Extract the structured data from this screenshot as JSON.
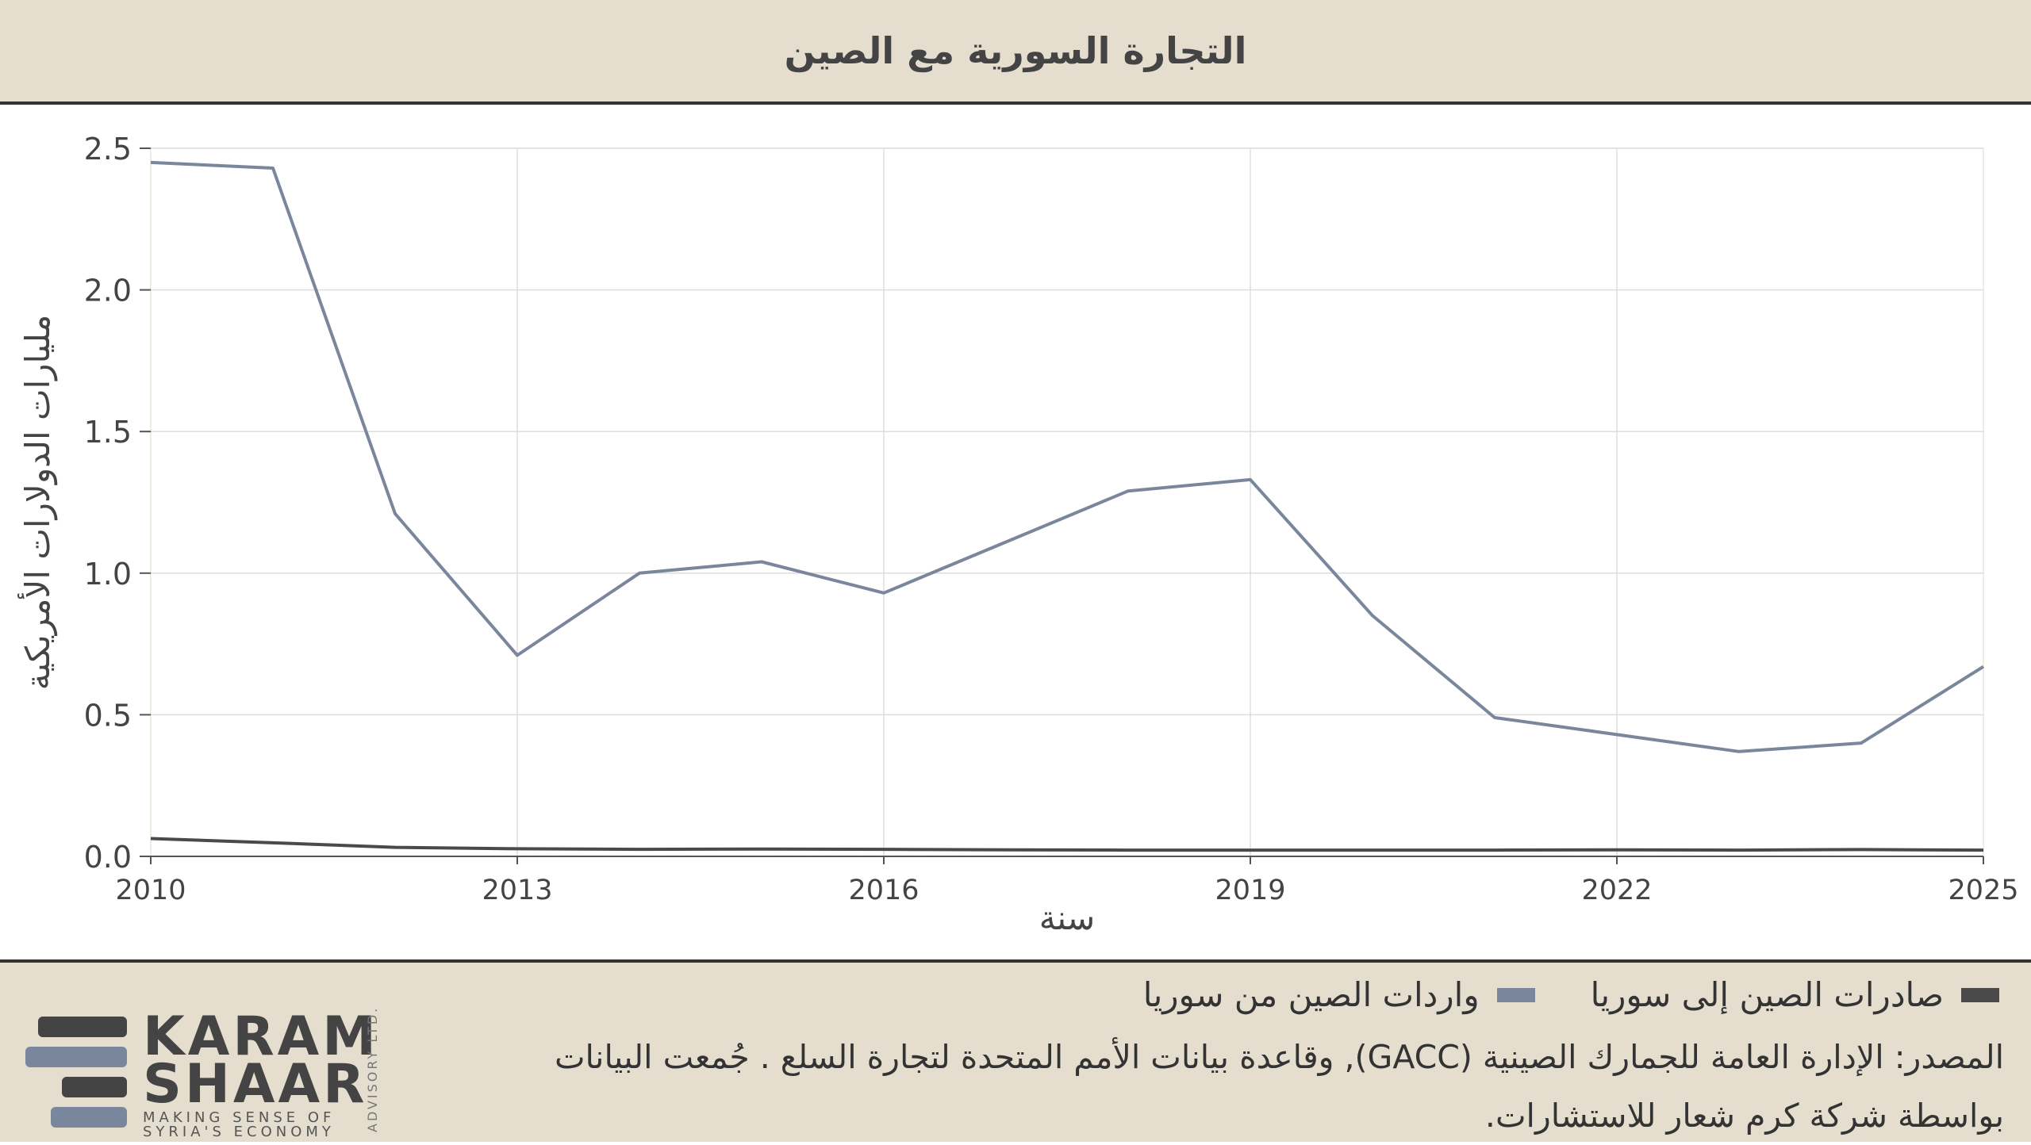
{
  "header": {
    "title": "التجارة السورية مع الصين"
  },
  "chart_data": {
    "type": "line",
    "title": "التجارة السورية مع الصين",
    "xlabel": "سنة",
    "ylabel": "مليارات الدولارات الأمريكية",
    "xlim": [
      2010,
      2025
    ],
    "ylim": [
      0,
      2.5
    ],
    "x_ticks": [
      "2010",
      "2013",
      "2016",
      "2019",
      "2022",
      "2025"
    ],
    "y_ticks": [
      "0.0",
      "0.5",
      "1.0",
      "1.5",
      "2.0",
      "2.5"
    ],
    "grid": true,
    "x": [
      2010,
      2011,
      2012,
      2013,
      2014,
      2015,
      2016,
      2017,
      2018,
      2019,
      2020,
      2021,
      2022,
      2023,
      2024,
      2025
    ],
    "series": [
      {
        "name": "واردات الصين من سوريا",
        "color": "#7a869b",
        "values": [
          2.45,
          2.43,
          1.21,
          0.71,
          1.0,
          1.04,
          0.93,
          1.11,
          1.29,
          1.33,
          0.85,
          0.49,
          0.43,
          0.37,
          0.4,
          0.67
        ]
      },
      {
        "name": "صادرات الصين إلى سوريا",
        "color": "#4a4a4a",
        "values": [
          0.063,
          0.048,
          0.032,
          0.027,
          0.025,
          0.026,
          0.025,
          0.023,
          0.022,
          0.022,
          0.022,
          0.022,
          0.023,
          0.022,
          0.024,
          0.022
        ]
      }
    ]
  },
  "legend": {
    "items": [
      {
        "label": "صادرات الصين إلى سوريا",
        "color": "#4a4a4a"
      },
      {
        "label": "واردات الصين من سوريا",
        "color": "#7a869b"
      }
    ]
  },
  "source": {
    "line1": "المصدر: الإدارة العامة للجمارك الصينية (GACC), وقاعدة بيانات الأمم المتحدة لتجارة السلع . جُمعت البيانات",
    "line2": "بواسطة شركة كرم شعار للاستشارات."
  },
  "logo": {
    "word1": "KARAM",
    "word2": "SHAAR",
    "tagline1": "MAKING SENSE OF",
    "tagline2": "SYRIA'S ECONOMY",
    "side_text": "ADVISORY LTD."
  }
}
